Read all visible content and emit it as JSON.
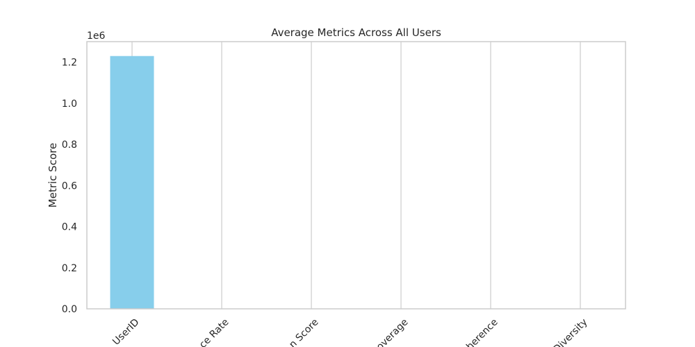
{
  "chart_data": {
    "type": "bar",
    "title": "Average Metrics Across All Users",
    "xlabel": "",
    "ylabel": "Metric Score",
    "offset_text": "1e6",
    "categories": [
      "UserID",
      "ce Rate",
      "n Score",
      "overage",
      "herence",
      "Diversity"
    ],
    "values": [
      1230000,
      0,
      0,
      0,
      0,
      0
    ],
    "ylim": [
      0,
      1300000
    ],
    "yticks": [
      0,
      200000,
      400000,
      600000,
      800000,
      1000000,
      1200000
    ],
    "ytick_labels": [
      "0.0",
      "0.2",
      "0.4",
      "0.6",
      "0.8",
      "1.0",
      "1.2"
    ],
    "bar_color": "#87CEEB",
    "grid": true
  }
}
